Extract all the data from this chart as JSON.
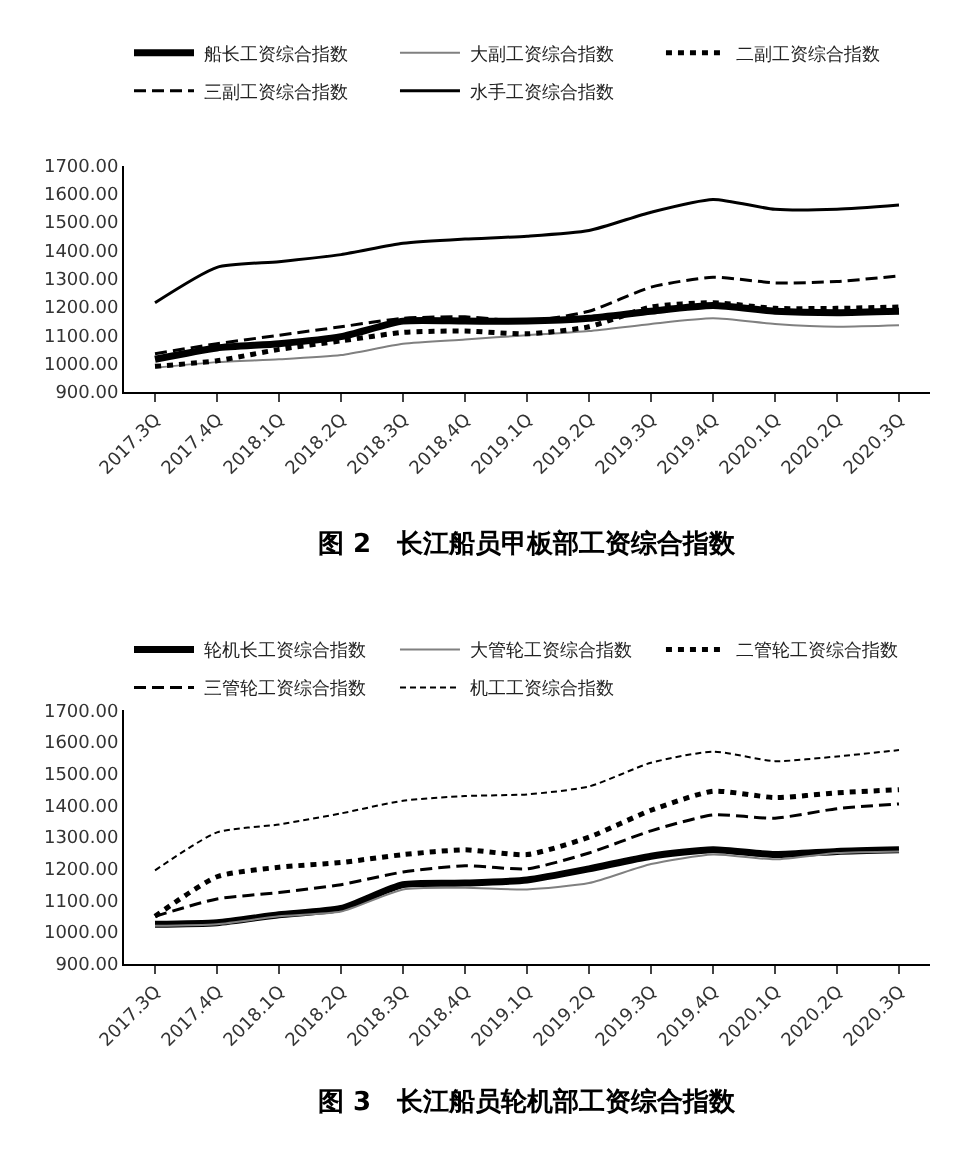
{
  "chart_data": [
    {
      "type": "line",
      "title": "图 2　长江船员甲板部工资综合指数",
      "categories": [
        "2017.3Q",
        "2017.4Q",
        "2018.1Q",
        "2018.2Q",
        "2018.3Q",
        "2018.4Q",
        "2019.1Q",
        "2019.2Q",
        "2019.3Q",
        "2019.4Q",
        "2020.1Q",
        "2020.2Q",
        "2020.3Q"
      ],
      "series": [
        {
          "name": "船长工资综合指数",
          "color": "#000000",
          "line_style": "solid",
          "values": [
            1015,
            1055,
            1070,
            1095,
            1150,
            1150,
            1150,
            1160,
            1185,
            1205,
            1185,
            1180,
            1185
          ]
        },
        {
          "name": "大副工资综合指数",
          "color": "#808080",
          "line_style": "solid",
          "values": [
            985,
            1005,
            1015,
            1030,
            1070,
            1085,
            1100,
            1115,
            1140,
            1160,
            1140,
            1130,
            1135
          ]
        },
        {
          "name": "二副工资综合指数",
          "color": "#000000",
          "line_style": "dotted",
          "values": [
            990,
            1010,
            1050,
            1080,
            1110,
            1115,
            1105,
            1130,
            1200,
            1215,
            1195,
            1195,
            1200
          ]
        },
        {
          "name": "三副工资综合指数",
          "color": "#000000",
          "line_style": "dashed",
          "values": [
            1035,
            1070,
            1100,
            1130,
            1160,
            1165,
            1150,
            1185,
            1270,
            1305,
            1285,
            1290,
            1310
          ]
        },
        {
          "name": "水手工资综合指数",
          "color": "#000000",
          "line_style": "solid",
          "values": [
            1215,
            1340,
            1360,
            1385,
            1425,
            1440,
            1450,
            1470,
            1535,
            1580,
            1545,
            1545,
            1560
          ]
        }
      ],
      "ylim": [
        900,
        1700
      ],
      "yticks": [
        {
          "value": 900,
          "label": "900.00"
        },
        {
          "value": 1000,
          "label": "1000.00"
        },
        {
          "value": 1100,
          "label": "1100.00"
        },
        {
          "value": 1200,
          "label": "1200.00"
        },
        {
          "value": 1300,
          "label": "1300.00"
        },
        {
          "value": 1400,
          "label": "1400.00"
        },
        {
          "value": 1500,
          "label": "1500.00"
        },
        {
          "value": 1600,
          "label": "1600.00"
        },
        {
          "value": 1700,
          "label": "1700.00"
        }
      ],
      "legend": "top",
      "marker": "none"
    },
    {
      "type": "line",
      "title": "图 3　长江船员轮机部工资综合指数",
      "categories": [
        "2017.3Q",
        "2017.4Q",
        "2018.1Q",
        "2018.2Q",
        "2018.3Q",
        "2018.4Q",
        "2019.1Q",
        "2019.2Q",
        "2019.3Q",
        "2019.4Q",
        "2020.1Q",
        "2020.2Q",
        "2020.3Q"
      ],
      "series": [
        {
          "name": "轮机长工资综合指数",
          "color": "#000000",
          "line_style": "solid",
          "values": [
            1025,
            1030,
            1055,
            1075,
            1150,
            1155,
            1165,
            1200,
            1240,
            1260,
            1245,
            1255,
            1260
          ]
        },
        {
          "name": "大管轮工资综合指数",
          "color": "#808080",
          "line_style": "solid",
          "values": [
            1020,
            1025,
            1050,
            1065,
            1135,
            1140,
            1135,
            1155,
            1215,
            1245,
            1230,
            1250,
            1255
          ]
        },
        {
          "name": "二管轮工资综合指数",
          "color": "#000000",
          "line_style": "dotted",
          "values": [
            1050,
            1175,
            1205,
            1220,
            1245,
            1260,
            1245,
            1300,
            1385,
            1445,
            1425,
            1440,
            1450
          ]
        },
        {
          "name": "三管轮工资综合指数",
          "color": "#000000",
          "line_style": "dashed",
          "values": [
            1050,
            1105,
            1125,
            1150,
            1190,
            1210,
            1200,
            1250,
            1320,
            1370,
            1360,
            1390,
            1405
          ]
        },
        {
          "name": "机工工资综合指数",
          "color": "#000000",
          "line_style": "dashed",
          "values": [
            1195,
            1315,
            1340,
            1375,
            1415,
            1430,
            1435,
            1460,
            1535,
            1570,
            1540,
            1555,
            1575
          ]
        }
      ],
      "ylim": [
        900,
        1700
      ],
      "yticks": [
        {
          "value": 900,
          "label": "900.00"
        },
        {
          "value": 1000,
          "label": "1000.00"
        },
        {
          "value": 1100,
          "label": "1100.00"
        },
        {
          "value": 1200,
          "label": "1200.00"
        },
        {
          "value": 1300,
          "label": "1300.00"
        },
        {
          "value": 1400,
          "label": "1400.00"
        },
        {
          "value": 1500,
          "label": "1500.00"
        },
        {
          "value": 1600,
          "label": "1600.00"
        },
        {
          "value": 1700,
          "label": "1700.00"
        }
      ],
      "legend": "top",
      "marker": "none"
    }
  ]
}
